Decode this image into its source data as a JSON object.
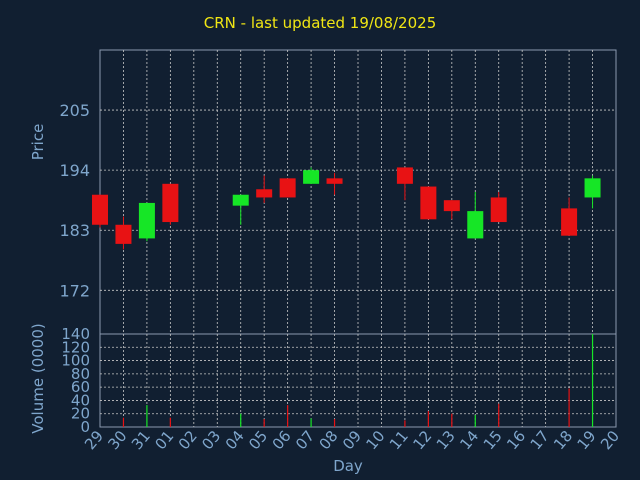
{
  "title": "CRN - last updated 19/08/2025",
  "colors": {
    "background": "#111f31",
    "axis_text": "#7fa6cc",
    "grid": "#c8c8c8",
    "up": "#16e626",
    "down": "#e81214",
    "title": "#f0e614"
  },
  "chart_data": [
    {
      "type": "candlestick",
      "title": "CRN - last updated 19/08/2025",
      "ylabel": "Price",
      "xlabel": "Day",
      "ylim": [
        164,
        216
      ],
      "yticks": [
        172,
        183,
        194,
        205
      ],
      "grid": true,
      "categories": [
        "29",
        "30",
        "31",
        "01",
        "02",
        "03",
        "04",
        "05",
        "06",
        "07",
        "08",
        "09",
        "10",
        "11",
        "12",
        "13",
        "14",
        "15",
        "16",
        "17",
        "18",
        "19",
        "20"
      ],
      "candles": [
        {
          "day": "29",
          "open": 189.5,
          "close": 184.0,
          "high": 189.5,
          "low": 183.5
        },
        {
          "day": "30",
          "open": 184.0,
          "close": 180.5,
          "high": 185.5,
          "low": 179.5
        },
        {
          "day": "31",
          "open": 181.5,
          "close": 188.0,
          "high": 188.0,
          "low": 181.0
        },
        {
          "day": "01",
          "open": 191.5,
          "close": 184.5,
          "high": 191.5,
          "low": 184.0
        },
        {
          "day": "04",
          "open": 187.5,
          "close": 189.5,
          "high": 189.5,
          "low": 184.0
        },
        {
          "day": "05",
          "open": 190.5,
          "close": 189.0,
          "high": 193.0,
          "low": 188.0
        },
        {
          "day": "06",
          "open": 192.5,
          "close": 189.0,
          "high": 192.5,
          "low": 189.0
        },
        {
          "day": "07",
          "open": 191.5,
          "close": 194.0,
          "high": 194.5,
          "low": 191.5
        },
        {
          "day": "08",
          "open": 192.5,
          "close": 191.5,
          "high": 193.5,
          "low": 189.5
        },
        {
          "day": "11",
          "open": 194.5,
          "close": 191.5,
          "high": 194.5,
          "low": 188.5
        },
        {
          "day": "12",
          "open": 191.0,
          "close": 185.0,
          "high": 191.0,
          "low": 185.0
        },
        {
          "day": "13",
          "open": 188.5,
          "close": 186.5,
          "high": 188.5,
          "low": 185.0
        },
        {
          "day": "14",
          "open": 181.5,
          "close": 186.5,
          "high": 190.0,
          "low": 181.5
        },
        {
          "day": "15",
          "open": 189.0,
          "close": 184.5,
          "high": 190.0,
          "low": 184.5
        },
        {
          "day": "18",
          "open": 187.0,
          "close": 182.0,
          "high": 189.0,
          "low": 182.0
        },
        {
          "day": "19",
          "open": 189.0,
          "close": 192.5,
          "high": 193.0,
          "low": 187.0
        }
      ]
    },
    {
      "type": "bar",
      "ylabel": "Volume (0000)",
      "xlabel": "Day",
      "ylim": [
        0,
        140
      ],
      "yticks": [
        0,
        20,
        40,
        60,
        80,
        100,
        120,
        140
      ],
      "grid": true,
      "volumes": [
        {
          "day": "29",
          "value": 0,
          "color": "down"
        },
        {
          "day": "30",
          "value": 14,
          "color": "down"
        },
        {
          "day": "31",
          "value": 33,
          "color": "up"
        },
        {
          "day": "01",
          "value": 14,
          "color": "down"
        },
        {
          "day": "04",
          "value": 20,
          "color": "up"
        },
        {
          "day": "05",
          "value": 12,
          "color": "down"
        },
        {
          "day": "06",
          "value": 33,
          "color": "down"
        },
        {
          "day": "07",
          "value": 13,
          "color": "up"
        },
        {
          "day": "08",
          "value": 12,
          "color": "down"
        },
        {
          "day": "11",
          "value": 10,
          "color": "down"
        },
        {
          "day": "12",
          "value": 24,
          "color": "down"
        },
        {
          "day": "13",
          "value": 20,
          "color": "down"
        },
        {
          "day": "14",
          "value": 18,
          "color": "up"
        },
        {
          "day": "15",
          "value": 35,
          "color": "down"
        },
        {
          "day": "18",
          "value": 58,
          "color": "down"
        },
        {
          "day": "19",
          "value": 140,
          "color": "up"
        }
      ]
    }
  ]
}
